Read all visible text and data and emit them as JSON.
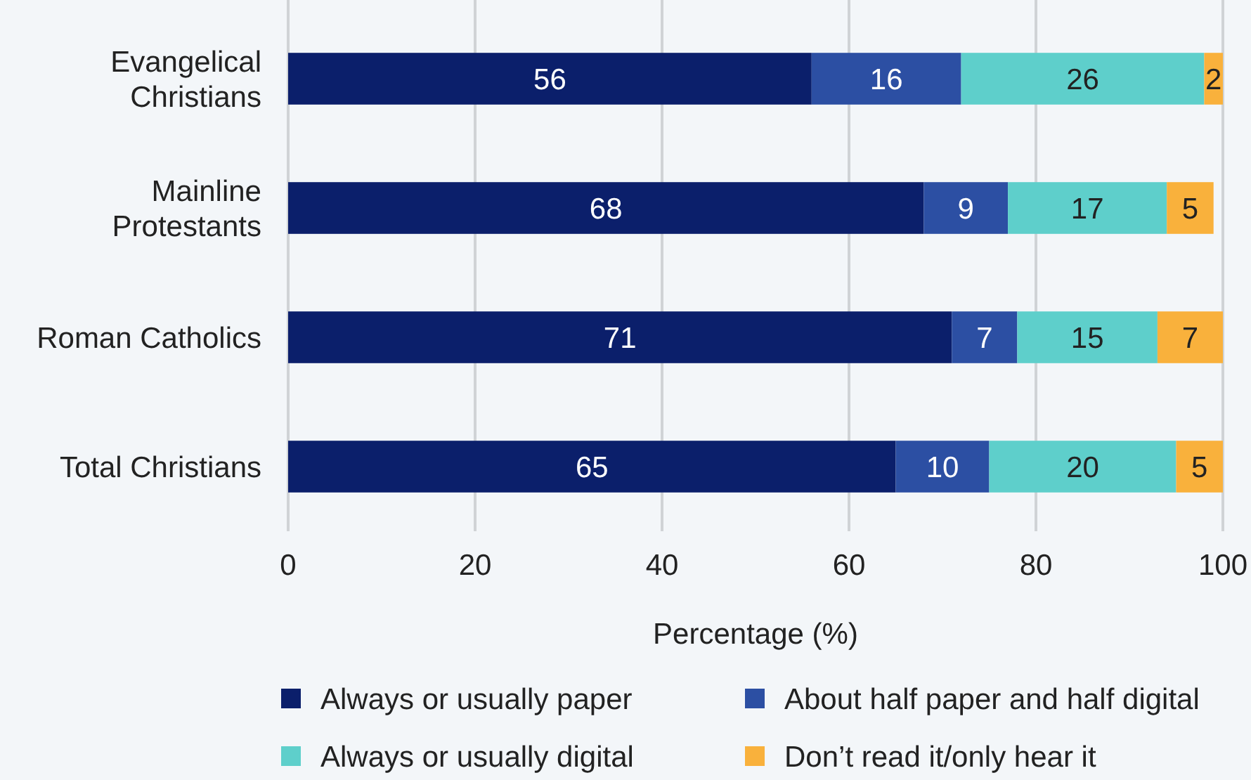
{
  "chart_data": {
    "type": "bar",
    "orientation": "horizontal",
    "stacked": true,
    "xlabel": "Percentage (%)",
    "categories": [
      "Evangelical Christians",
      "Mainline Protestants",
      "Roman Catholics",
      "Total Christians"
    ],
    "series": [
      {
        "name": "Always or usually paper",
        "color": "#0b1f6b",
        "values": [
          56,
          68,
          71,
          65
        ]
      },
      {
        "name": "About half paper and half digital",
        "color": "#2c4fa3",
        "values": [
          16,
          9,
          7,
          10
        ]
      },
      {
        "name": "Always or usually digital",
        "color": "#5ecfcb",
        "values": [
          26,
          17,
          15,
          20
        ]
      },
      {
        "name": "Don’t read it/only hear it",
        "color": "#f9b13c",
        "values": [
          2,
          5,
          7,
          5
        ]
      }
    ],
    "xlim": [
      0,
      100
    ],
    "xticks": [
      0,
      20,
      40,
      60,
      80,
      100
    ],
    "grid": "x",
    "legend": "bottom",
    "data_labels": true
  }
}
